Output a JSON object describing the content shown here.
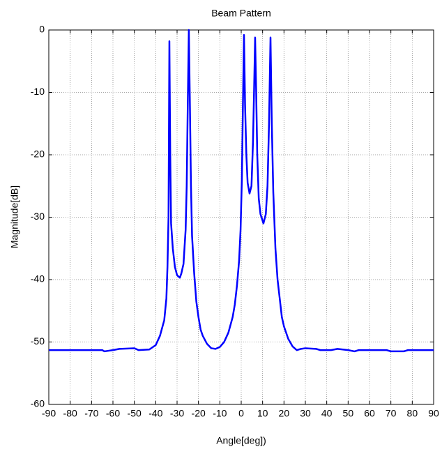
{
  "chart_data": {
    "type": "line",
    "title": "Beam Pattern",
    "x_label": "Angle[deg])",
    "y_label": "Magnitude[dB]",
    "x": [
      -90,
      -65,
      -64,
      -60,
      -57,
      -50,
      -48,
      -43,
      -40,
      -38,
      -36,
      -35,
      -34.5,
      -34,
      -33.6,
      -33.2,
      -32.8,
      -32,
      -31,
      -30,
      -28.7,
      -28,
      -27,
      -26,
      -25.5,
      -25,
      -24.5,
      -24,
      -23.5,
      -23,
      -22,
      -21,
      -20,
      -19,
      -18,
      -16,
      -14,
      -12,
      -10,
      -8,
      -6,
      -4,
      -3,
      -2,
      -1,
      -0.3,
      0.3,
      0.8,
      1.3,
      1.8,
      2.4,
      3,
      3.9,
      4.8,
      5.5,
      6,
      6.5,
      7,
      7.5,
      8.2,
      9,
      10.4,
      11.5,
      12.3,
      13,
      13.7,
      14.3,
      15,
      16,
      17,
      18,
      19,
      20,
      22,
      24,
      26,
      28,
      30,
      35,
      37,
      42,
      45,
      50,
      53,
      55,
      68,
      70,
      76,
      78,
      90
    ],
    "values": [
      -51.3,
      -51.3,
      -51.5,
      -51.3,
      -51.1,
      -51,
      -51.3,
      -51.2,
      -50.5,
      -49,
      -46.5,
      -43,
      -38,
      -30,
      -1.8,
      -20,
      -31,
      -35,
      -38,
      -39.3,
      -39.7,
      -39,
      -37.5,
      -32,
      -25,
      -12,
      0,
      -12,
      -25,
      -33,
      -39,
      -43.5,
      -46,
      -48,
      -49,
      -50.3,
      -51,
      -51.1,
      -50.8,
      -50,
      -48.5,
      -46,
      -44,
      -41,
      -37,
      -32,
      -24,
      -12,
      -0.8,
      -12,
      -20,
      -24.5,
      -26.2,
      -25,
      -18,
      -10,
      -1.2,
      -10,
      -20,
      -27,
      -29.5,
      -31,
      -29.5,
      -25,
      -15,
      -1.2,
      -15,
      -26,
      -35,
      -40,
      -43,
      -46,
      -47.5,
      -49.5,
      -50.7,
      -51.3,
      -51.1,
      -51,
      -51.1,
      -51.3,
      -51.3,
      -51.1,
      -51.3,
      -51.5,
      -51.3,
      -51.3,
      -51.5,
      -51.5,
      -51.3,
      -51.3
    ],
    "color": "#0000ff",
    "xlim": [
      -90,
      90
    ],
    "xticks": [
      -90,
      -80,
      -70,
      -60,
      -50,
      -40,
      -30,
      -20,
      -10,
      0,
      10,
      20,
      30,
      40,
      50,
      60,
      70,
      80,
      90
    ],
    "ylim": [
      -60,
      0
    ],
    "yticks": [
      -60,
      -50,
      -40,
      -30,
      -20,
      -10,
      0
    ],
    "grid": true
  }
}
